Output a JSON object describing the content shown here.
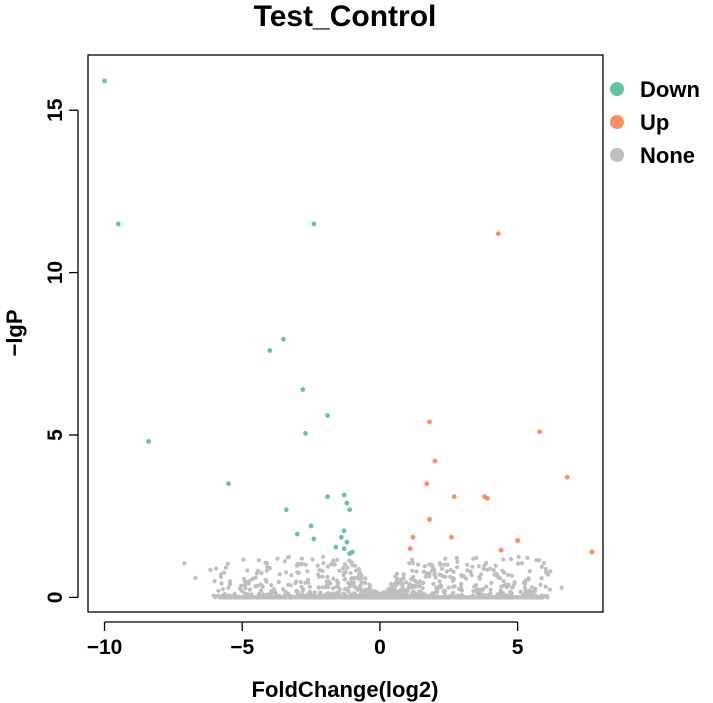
{
  "chart_data": {
    "type": "scatter",
    "title": "Test_Control",
    "xlabel": "FoldChange(log2)",
    "ylabel": "−lgP",
    "xlim": [
      -10.6,
      8.1
    ],
    "ylim": [
      -0.45,
      16.7
    ],
    "x_ticks": [
      -10,
      -5,
      0,
      5
    ],
    "y_ticks": [
      0,
      5,
      10,
      15
    ],
    "grid": false,
    "legend_position": "top-right",
    "series": [
      {
        "name": "Down",
        "color": "#66C2A5",
        "points": [
          [
            -10.0,
            15.9
          ],
          [
            -9.5,
            11.5
          ],
          [
            -2.4,
            11.5
          ],
          [
            -3.5,
            7.95
          ],
          [
            -4.0,
            7.6
          ],
          [
            -2.8,
            6.4
          ],
          [
            -1.9,
            5.6
          ],
          [
            -2.7,
            5.05
          ],
          [
            -8.4,
            4.8
          ],
          [
            -5.5,
            3.5
          ],
          [
            -1.9,
            3.1
          ],
          [
            -1.3,
            3.15
          ],
          [
            -1.2,
            2.9
          ],
          [
            -3.4,
            2.7
          ],
          [
            -1.1,
            2.7
          ],
          [
            -2.5,
            2.2
          ],
          [
            -1.3,
            2.05
          ],
          [
            -3.0,
            1.95
          ],
          [
            -1.4,
            1.85
          ],
          [
            -2.4,
            1.8
          ],
          [
            -1.2,
            1.7
          ],
          [
            -1.6,
            1.55
          ],
          [
            -1.3,
            1.5
          ],
          [
            -1.1,
            1.35
          ],
          [
            -1.0,
            1.4
          ]
        ]
      },
      {
        "name": "Up",
        "color": "#FC8D62",
        "points": [
          [
            4.3,
            11.2
          ],
          [
            1.8,
            5.4
          ],
          [
            5.8,
            5.1
          ],
          [
            2.0,
            4.2
          ],
          [
            6.8,
            3.7
          ],
          [
            1.7,
            3.5
          ],
          [
            2.7,
            3.1
          ],
          [
            3.8,
            3.1
          ],
          [
            3.9,
            3.05
          ],
          [
            1.8,
            2.4
          ],
          [
            1.2,
            1.85
          ],
          [
            2.6,
            1.85
          ],
          [
            5.0,
            1.75
          ],
          [
            1.1,
            1.5
          ],
          [
            4.4,
            1.45
          ],
          [
            7.7,
            1.4
          ]
        ]
      },
      {
        "name": "None",
        "color": "#BEBEBE",
        "points": []
      }
    ]
  }
}
